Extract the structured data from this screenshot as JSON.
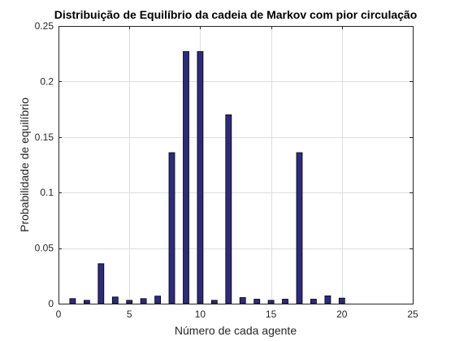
{
  "chart_data": {
    "type": "bar",
    "title": "Distribuição de Equilíbrio da cadeia de Markov com pior circulação",
    "xlabel": "Número de cada agente",
    "ylabel": "Probabilidade de equilíbrio",
    "xlim": [
      0,
      25
    ],
    "ylim": [
      0,
      0.25
    ],
    "xticks": [
      0,
      5,
      10,
      15,
      20,
      25
    ],
    "xtick_labels": [
      "0",
      "5",
      "10",
      "15",
      "20",
      "25"
    ],
    "yticks": [
      0,
      0.05,
      0.1,
      0.15,
      0.2,
      0.25
    ],
    "ytick_labels": [
      "0",
      "0.05",
      "0.1",
      "0.15",
      "0.2",
      "0.25"
    ],
    "grid": true,
    "x": [
      1,
      2,
      3,
      4,
      5,
      6,
      7,
      8,
      9,
      10,
      11,
      12,
      13,
      14,
      15,
      16,
      17,
      18,
      19,
      20
    ],
    "values": [
      0.0045,
      0.003,
      0.036,
      0.006,
      0.003,
      0.0045,
      0.0068,
      0.136,
      0.227,
      0.227,
      0.003,
      0.17,
      0.0055,
      0.004,
      0.003,
      0.004,
      0.136,
      0.004,
      0.007,
      0.005
    ],
    "bar_color": "#2e2a7e"
  }
}
